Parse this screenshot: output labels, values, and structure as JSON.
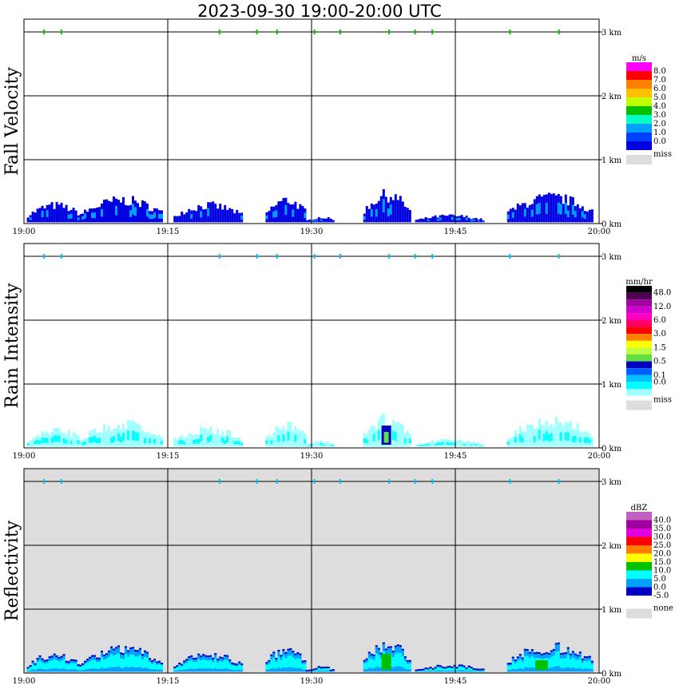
{
  "title": "2023-09-30  19:00-20:00 UTC",
  "chart_data": [
    {
      "type": "heatmap",
      "title": "Fall Velocity",
      "x_ticks": [
        "19:00",
        "19:15",
        "19:30",
        "19:45",
        "20:00"
      ],
      "y_ticks": [
        "0 km",
        "1 km",
        "2 km",
        "3 km"
      ],
      "ylim": [
        0,
        3.2
      ],
      "legend": {
        "unit": "m/s",
        "labels": [
          "8.0",
          "7.0",
          "6.0",
          "5.0",
          "4.0",
          "3.0",
          "2.0",
          "1.0",
          "0.0"
        ],
        "colors": [
          "#ff00ff",
          "#ff0000",
          "#ff8000",
          "#ffc000",
          "#c0ff00",
          "#00c000",
          "#00ffc0",
          "#00a0ff",
          "#0040ff",
          "#0000e0"
        ],
        "miss_label": "miss",
        "miss_color": "#dddddd"
      },
      "background": "#ffffff"
    },
    {
      "type": "heatmap",
      "title": "Rain Intensity",
      "x_ticks": [
        "19:00",
        "19:15",
        "19:30",
        "19:45",
        "20:00"
      ],
      "y_ticks": [
        "0 km",
        "1 km",
        "2 km",
        "3 km"
      ],
      "ylim": [
        0,
        3.2
      ],
      "legend": {
        "unit": "mm/hr",
        "labels": [
          "48.0",
          "",
          "12.0",
          "",
          "6.0",
          "",
          "3.0",
          "",
          "1.5",
          "",
          "0.5",
          "",
          "0.1",
          "0.0"
        ],
        "colors": [
          "#000000",
          "#500050",
          "#a000a0",
          "#d000d0",
          "#ff00c0",
          "#ff0060",
          "#ff0000",
          "#ff8000",
          "#ffff00",
          "#c0ff40",
          "#60e040",
          "#0000c0",
          "#0060ff",
          "#00c0ff",
          "#00ffff",
          "#a0ffff"
        ],
        "miss_label": "miss",
        "miss_color": "#dddddd"
      },
      "background": "#ffffff"
    },
    {
      "type": "heatmap",
      "title": "Reflectivity",
      "x_ticks": [
        "19:00",
        "19:15",
        "19:30",
        "19:45",
        "20:00"
      ],
      "y_ticks": [
        "0 km",
        "1 km",
        "2 km",
        "3 km"
      ],
      "ylim": [
        0,
        3.2
      ],
      "legend": {
        "unit": "dBZ",
        "labels": [
          "40.0",
          "35.0",
          "30.0",
          "25.0",
          "20.0",
          "15.0",
          "10.0",
          "5.0",
          "0.0",
          "-5.0"
        ],
        "colors": [
          "#c060c0",
          "#a000a0",
          "#e000e0",
          "#ff0000",
          "#ff8000",
          "#ffff00",
          "#00c000",
          "#00ffff",
          "#00a0ff",
          "#0000c0",
          "#ffffff"
        ],
        "miss_label": "none",
        "miss_color": "#dddddd"
      },
      "background": "#dddddd"
    }
  ]
}
